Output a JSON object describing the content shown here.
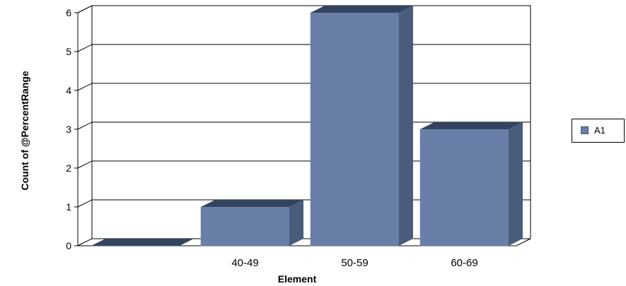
{
  "chart_data": {
    "type": "bar",
    "title": "",
    "xlabel": "Element",
    "ylabel": "Count of @PercentRange",
    "categories": [
      "",
      "40-49",
      "50-59",
      "60-69"
    ],
    "series": [
      {
        "name": "A1",
        "values": [
          0,
          1,
          6,
          3
        ]
      }
    ],
    "ylim": [
      0,
      6
    ],
    "yticks": [
      "0",
      "1",
      "2",
      "3",
      "4",
      "5",
      "6"
    ],
    "grid": true,
    "legend": "right",
    "three_d": true,
    "colors": {
      "front": "#6a7fa8",
      "side": "#4a5c7c",
      "top": "#33445f"
    }
  }
}
